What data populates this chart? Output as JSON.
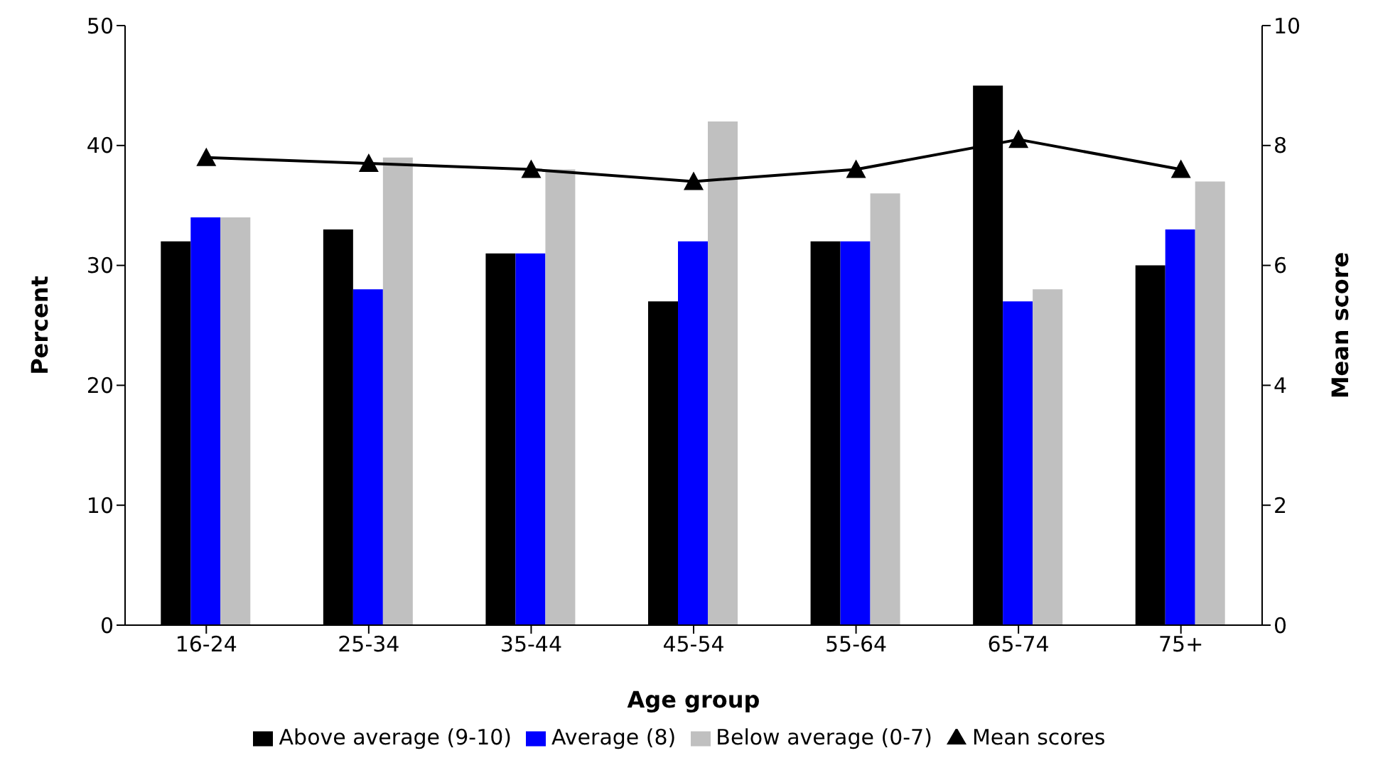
{
  "chart_data": {
    "type": "bar",
    "xlabel": "Age group",
    "ylabel": "Percent",
    "y2label": "Mean score",
    "categories": [
      "16-24",
      "25-34",
      "35-44",
      "45-54",
      "55-64",
      "65-74",
      "75+"
    ],
    "series": [
      {
        "name": "Above average (9-10)",
        "color": "#000000",
        "values": [
          32,
          33,
          31,
          27,
          32,
          45,
          30
        ]
      },
      {
        "name": "Average (8)",
        "color": "#0000ff",
        "values": [
          34,
          28,
          31,
          32,
          32,
          27,
          33
        ]
      },
      {
        "name": "Below average (0-7)",
        "color": "#c0c0c0",
        "values": [
          34,
          39,
          38,
          42,
          36,
          28,
          37
        ]
      },
      {
        "name": "Mean scores",
        "type": "line",
        "axis": "y2",
        "color": "#000000",
        "marker": "triangle",
        "values": [
          7.8,
          7.7,
          7.6,
          7.4,
          7.6,
          8.1,
          7.6
        ]
      }
    ],
    "ylim": [
      0,
      50
    ],
    "yticks": [
      0,
      10,
      20,
      30,
      40,
      50
    ],
    "y2lim": [
      0,
      10
    ],
    "y2ticks": [
      0,
      2,
      4,
      6,
      8,
      10
    ],
    "legend": "bottom"
  }
}
